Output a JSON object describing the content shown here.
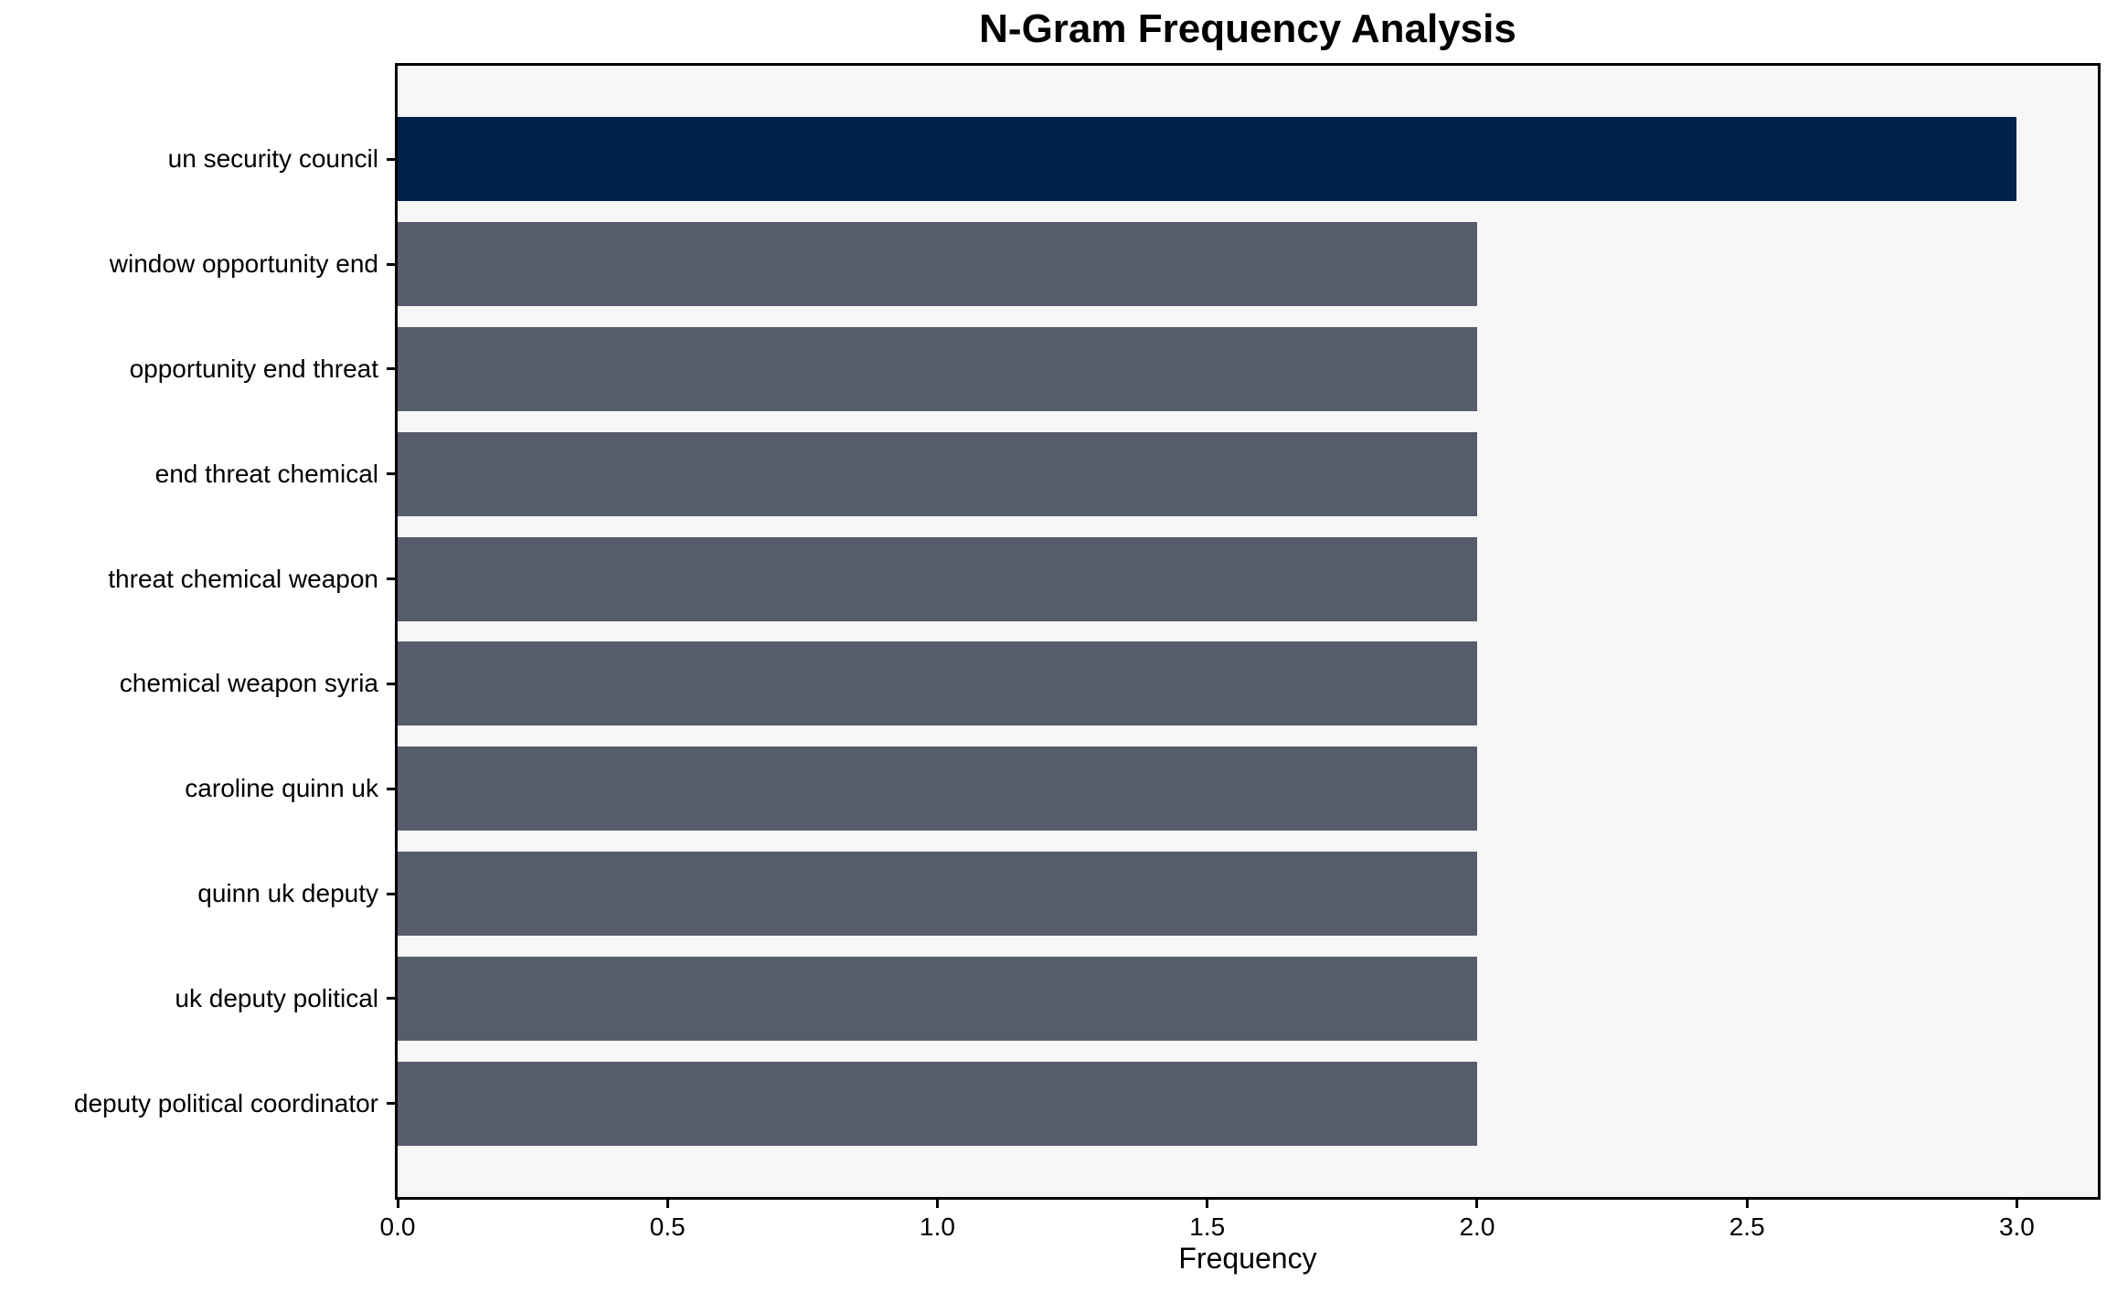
{
  "chart_data": {
    "type": "bar",
    "orientation": "horizontal",
    "title": "N-Gram Frequency Analysis",
    "xlabel": "Frequency",
    "ylabel": "",
    "categories": [
      "un security council",
      "window opportunity end",
      "opportunity end threat",
      "end threat chemical",
      "threat chemical weapon",
      "chemical weapon syria",
      "caroline quinn uk",
      "quinn uk deputy",
      "uk deputy political",
      "deputy political coordinator"
    ],
    "values": [
      3,
      2,
      2,
      2,
      2,
      2,
      2,
      2,
      2,
      2
    ],
    "highlight_index": 0,
    "xlim": [
      0,
      3.15
    ],
    "x_tick_values": [
      0.0,
      0.5,
      1.0,
      1.5,
      2.0,
      2.5,
      3.0
    ],
    "x_tick_labels": [
      "0.0",
      "0.5",
      "1.0",
      "1.5",
      "2.0",
      "2.5",
      "3.0"
    ],
    "grid": false,
    "legend": null,
    "colors": {
      "highlight_bar": "#01214D",
      "bar": "#575C6C",
      "plot_background": "#F7F7F8",
      "frame": "#000000",
      "text": "#000000"
    }
  }
}
